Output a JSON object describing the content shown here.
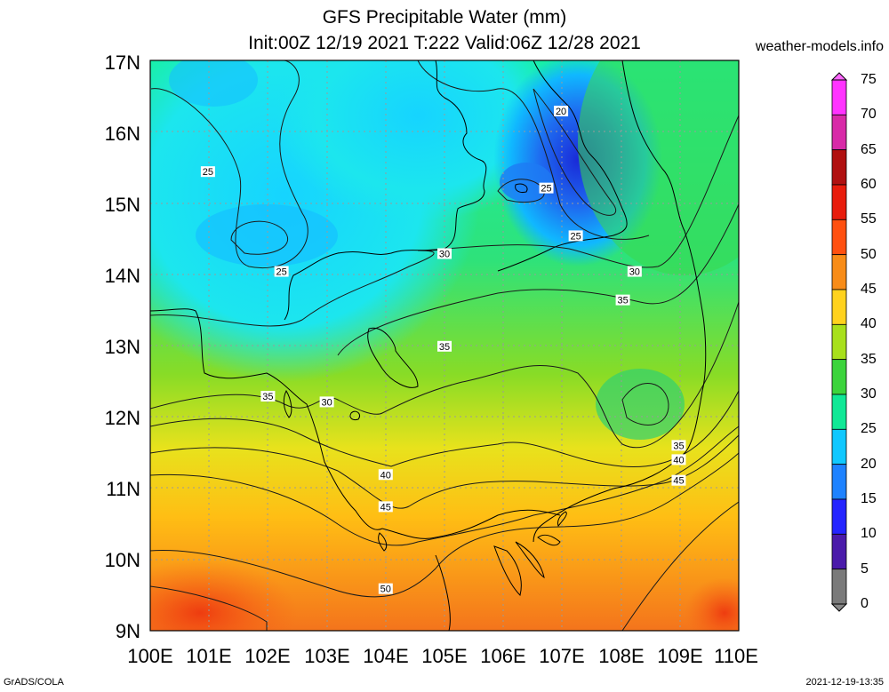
{
  "title_line1": "GFS Precipitable Water (mm)",
  "title_line2": "Init:00Z 12/19 2021 T:222 Valid:06Z 12/28 2021",
  "website": "weather-models.info",
  "footer_left": "GrADS/COLA",
  "footer_right": "2021-12-19-13:35",
  "lat_labels": [
    "17N",
    "16N",
    "15N",
    "14N",
    "13N",
    "12N",
    "11N",
    "10N",
    "9N"
  ],
  "lon_labels": [
    "100E",
    "101E",
    "102E",
    "103E",
    "104E",
    "105E",
    "106E",
    "107E",
    "108E",
    "109E",
    "110E"
  ],
  "colorbar": {
    "labels": [
      "75",
      "70",
      "65",
      "60",
      "55",
      "50",
      "45",
      "40",
      "35",
      "30",
      "25",
      "20",
      "15",
      "10",
      "5",
      "0"
    ],
    "colors": [
      "#ff33ff",
      "#d82aa8",
      "#b01010",
      "#e81c0c",
      "#ff5010",
      "#f88c18",
      "#ffd21e",
      "#a8e01c",
      "#3cd43c",
      "#10e896",
      "#10c8ff",
      "#1e82ff",
      "#2424ff",
      "#4a1aaa",
      "#7a7a7a"
    ]
  },
  "contour_labels": [
    {
      "text": "20",
      "lon": 106.98,
      "lat": 16.29
    },
    {
      "text": "25",
      "lon": 100.98,
      "lat": 15.44
    },
    {
      "text": "25",
      "lon": 106.73,
      "lat": 15.21
    },
    {
      "text": "25",
      "lon": 107.23,
      "lat": 14.54
    },
    {
      "text": "25",
      "lon": 102.23,
      "lat": 14.04
    },
    {
      "text": "30",
      "lon": 105.0,
      "lat": 14.29
    },
    {
      "text": "30",
      "lon": 108.23,
      "lat": 14.04
    },
    {
      "text": "35",
      "lon": 108.03,
      "lat": 13.64
    },
    {
      "text": "35",
      "lon": 105.0,
      "lat": 12.99
    },
    {
      "text": "35",
      "lon": 102.0,
      "lat": 12.29
    },
    {
      "text": "30",
      "lon": 103.0,
      "lat": 12.21
    },
    {
      "text": "35",
      "lon": 108.98,
      "lat": 11.6
    },
    {
      "text": "40",
      "lon": 108.98,
      "lat": 11.4
    },
    {
      "text": "40",
      "lon": 104.0,
      "lat": 11.19
    },
    {
      "text": "45",
      "lon": 108.98,
      "lat": 11.11
    },
    {
      "text": "45",
      "lon": 104.0,
      "lat": 10.74
    },
    {
      "text": "50",
      "lon": 104.0,
      "lat": 9.59
    }
  ]
}
